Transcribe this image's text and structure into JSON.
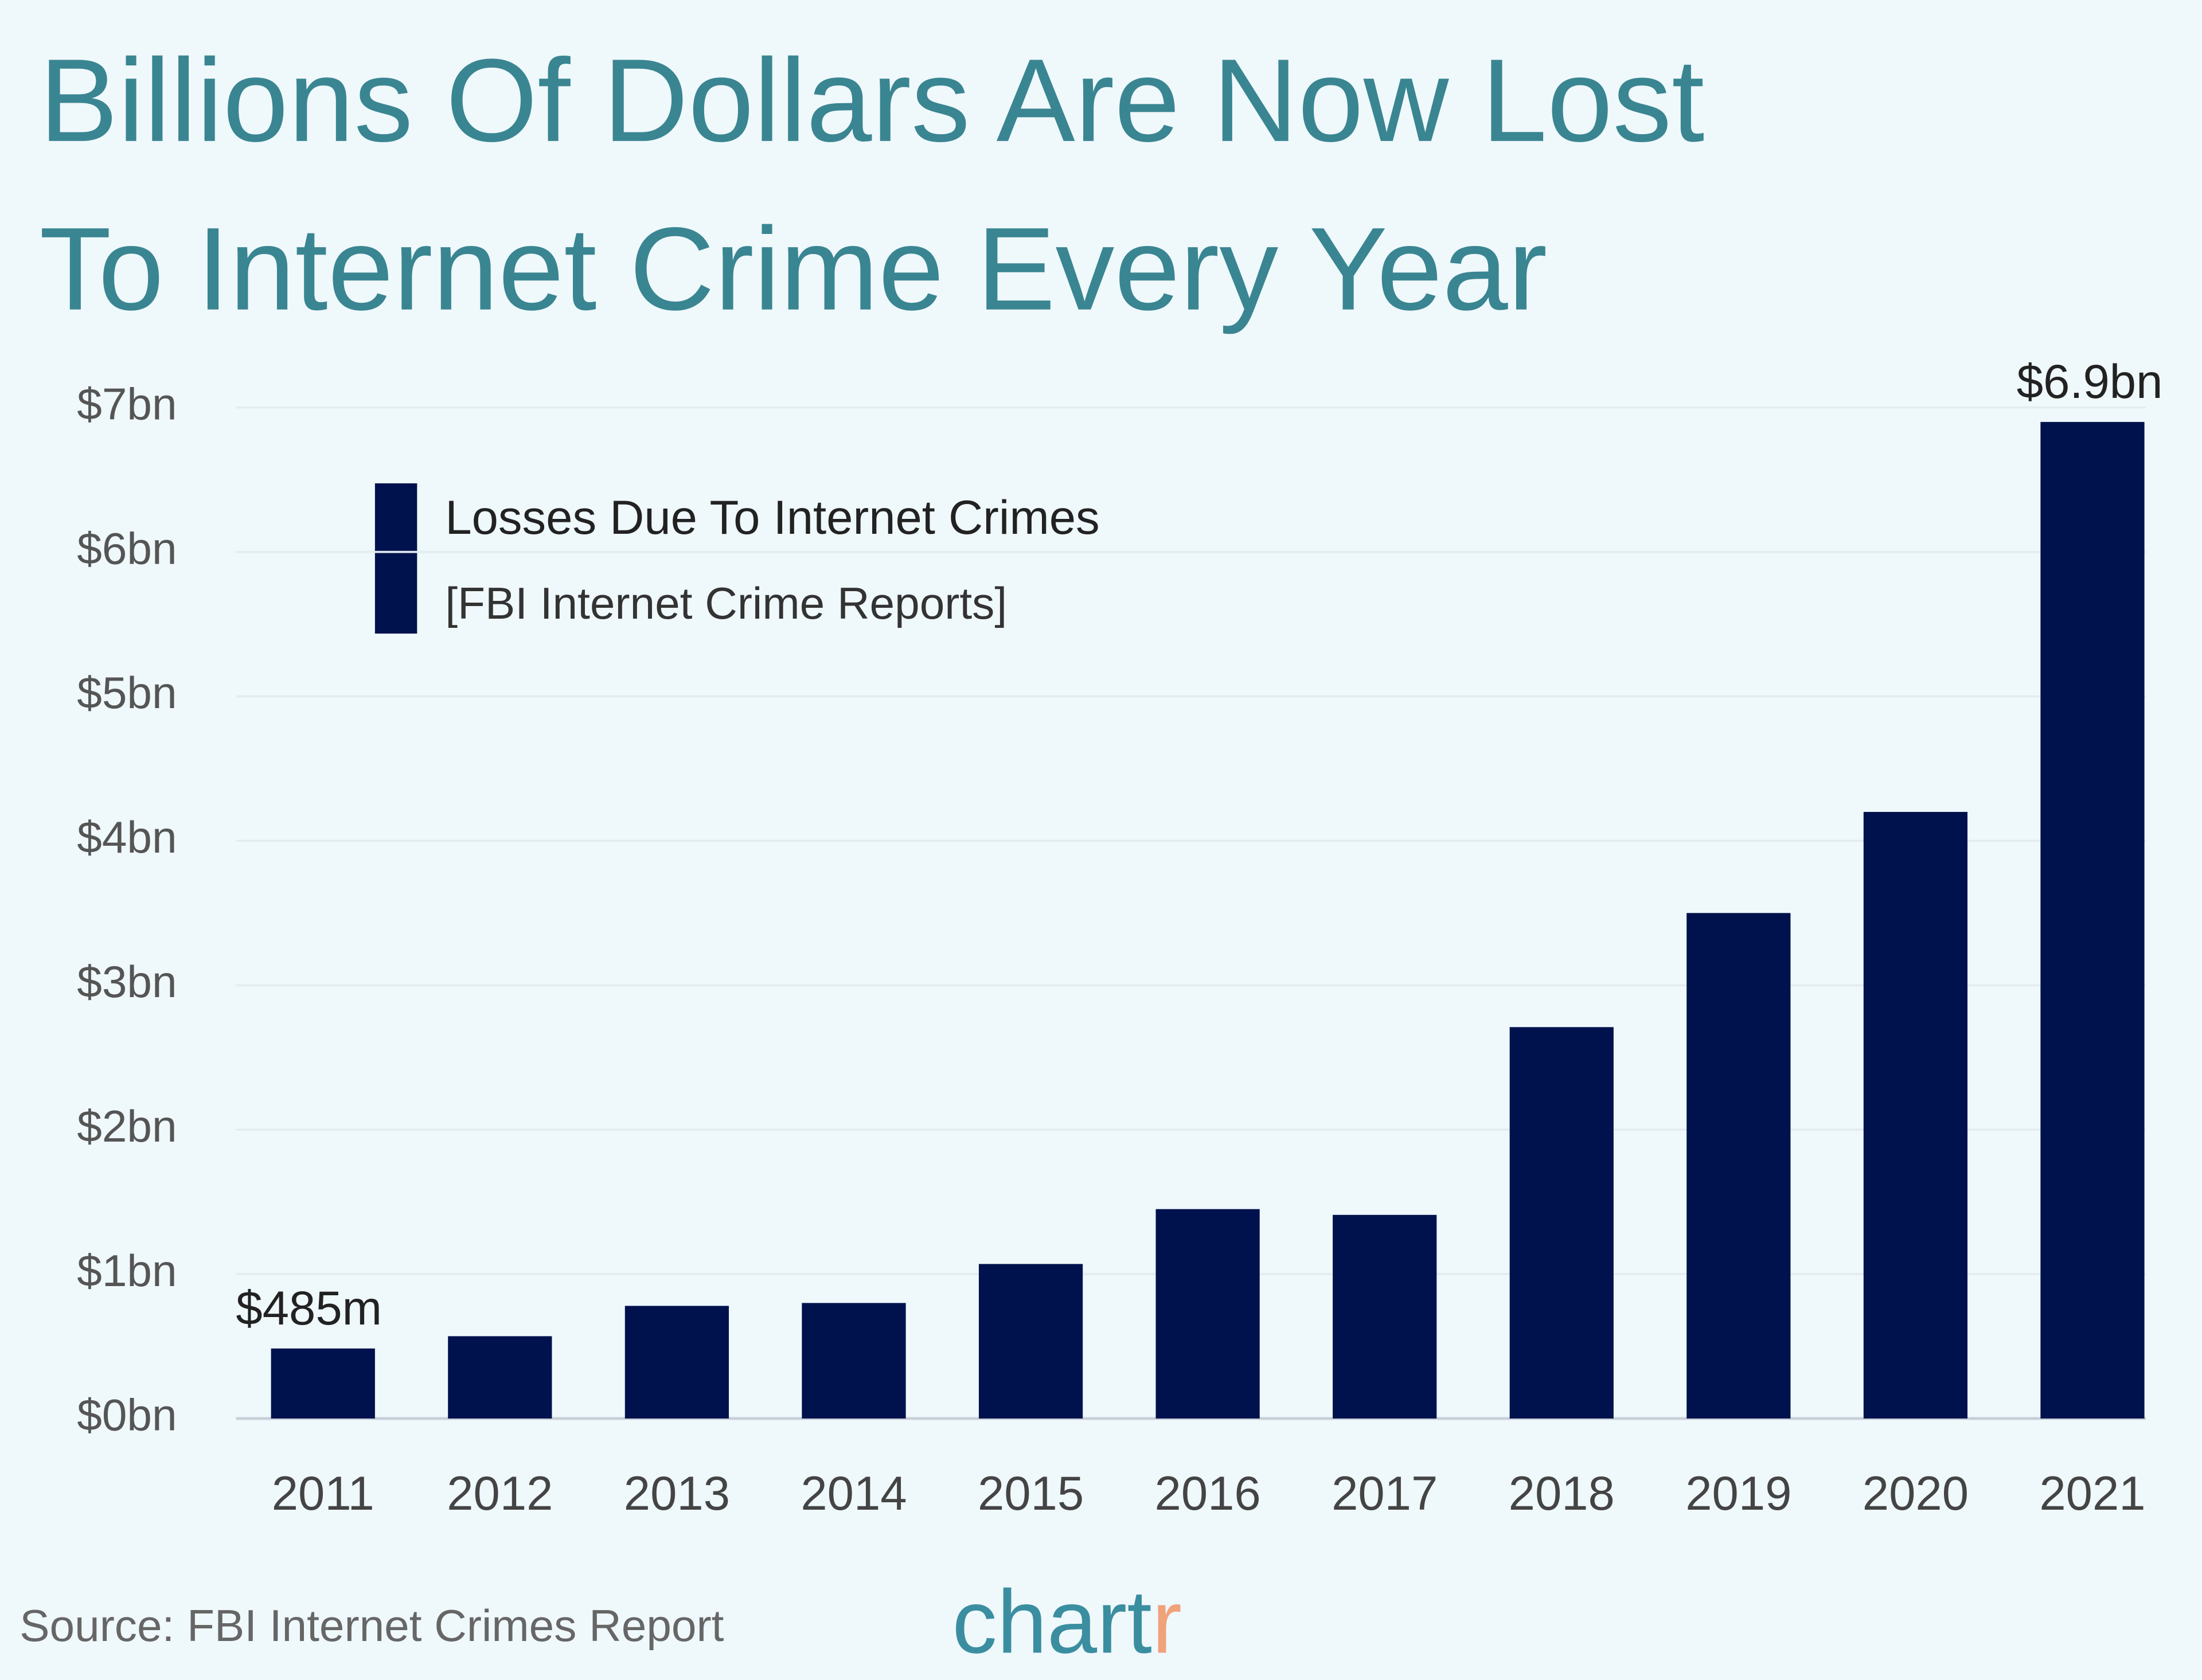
{
  "chart_data": {
    "type": "bar",
    "title": [
      "Billions Of Dollars Are Now Lost",
      "To Internet Crime Every Year"
    ],
    "categories": [
      "2011",
      "2012",
      "2013",
      "2014",
      "2015",
      "2016",
      "2017",
      "2018",
      "2019",
      "2020",
      "2021"
    ],
    "series": [
      {
        "name": "Losses Due To Internet Crimes",
        "color": "#00124d",
        "values": [
          0.485,
          0.57,
          0.78,
          0.8,
          1.07,
          1.45,
          1.41,
          2.71,
          3.5,
          4.2,
          6.9
        ],
        "value_labels": [
          "$485m",
          null,
          null,
          null,
          null,
          null,
          null,
          null,
          null,
          null,
          "$6.9bn"
        ]
      }
    ],
    "legend_note": "[FBI Internet Crime Reports]",
    "ylim": [
      0,
      7
    ],
    "yticks": [
      {
        "value": 0,
        "label": "$0bn"
      },
      {
        "value": 1,
        "label": "$1bn"
      },
      {
        "value": 2,
        "label": "$2bn"
      },
      {
        "value": 3,
        "label": "$3bn"
      },
      {
        "value": 4,
        "label": "$4bn"
      },
      {
        "value": 5,
        "label": "$5bn"
      },
      {
        "value": 6,
        "label": "$6bn"
      },
      {
        "value": 7,
        "label": "$7bn"
      }
    ],
    "grid": true,
    "source": "Source: FBI Internet Crimes Report",
    "logo": "chartr"
  }
}
